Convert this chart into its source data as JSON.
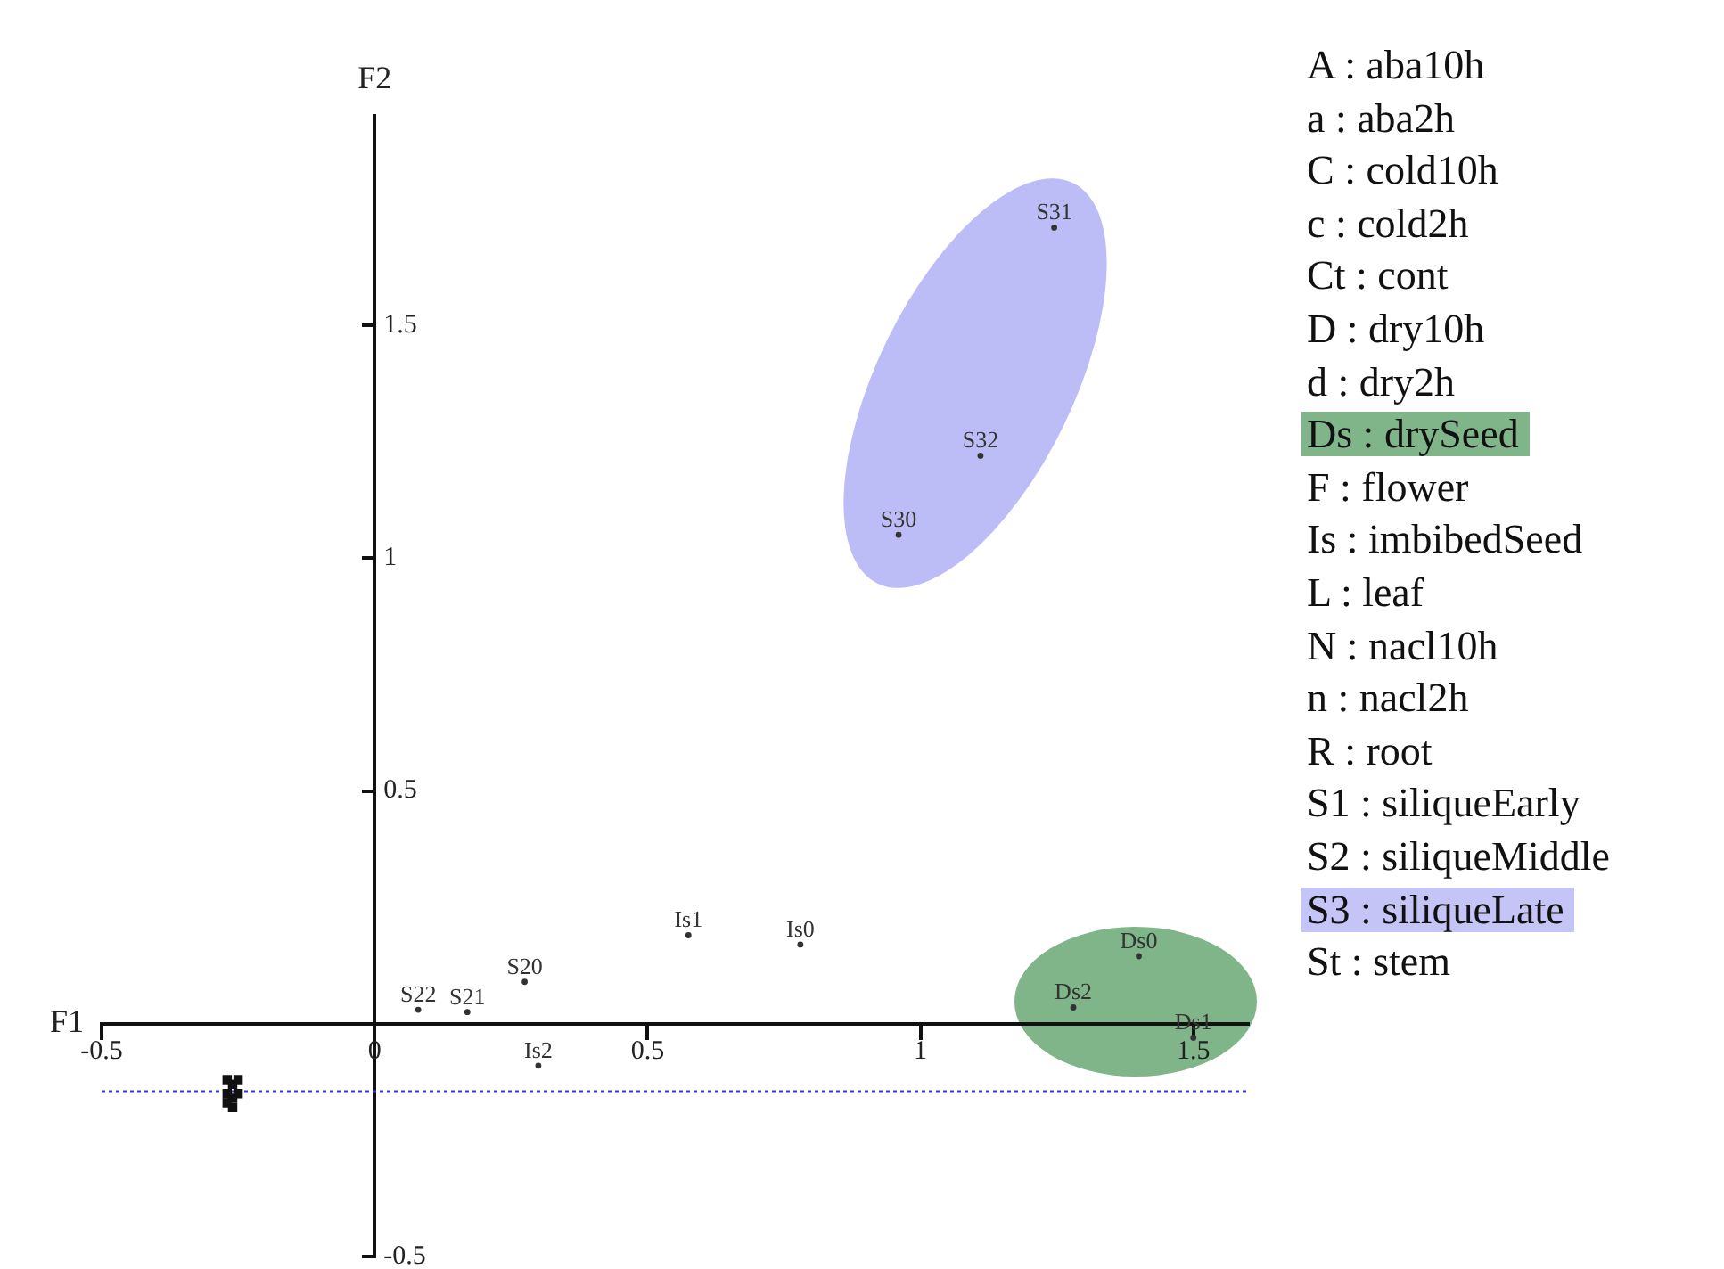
{
  "chart_data": {
    "type": "scatter",
    "xlabel": "F1",
    "ylabel": "F2",
    "xlim": [
      -0.5,
      1.6
    ],
    "ylim": [
      -0.5,
      1.95
    ],
    "xticks": [
      -0.5,
      0,
      0.5,
      1,
      1.5
    ],
    "yticks": [
      -0.5,
      0.5,
      1,
      1.5
    ],
    "grid": false,
    "legend": false,
    "marker": "circle",
    "series": [
      {
        "color": "#333333",
        "x": [
          1.245,
          1.11,
          0.96,
          0.575,
          0.78,
          1.4,
          1.28,
          1.5,
          0.275,
          0.08,
          0.17,
          0.3
        ],
        "values": [
          1.71,
          1.22,
          1.05,
          0.19,
          0.17,
          0.145,
          0.035,
          -0.03,
          0.09,
          0.03,
          0.025,
          -0.09
        ],
        "value_labels": [
          "S31",
          "S32",
          "S30",
          "Is1",
          "Is0",
          "Ds0",
          "Ds2",
          "Ds1",
          "S20",
          "S22",
          "S21",
          "Is2"
        ]
      },
      {
        "color": "#111111",
        "marker": "square",
        "x": [
          -0.27,
          -0.26,
          -0.25,
          -0.27,
          -0.26,
          -0.25,
          -0.27,
          -0.26
        ],
        "values": [
          -0.12,
          -0.13,
          -0.12,
          -0.15,
          -0.16,
          -0.15,
          -0.17,
          -0.18
        ]
      }
    ],
    "ref_lines": [
      {
        "axis": "y",
        "value": -0.145,
        "color": "#3333ff",
        "line_style": "dotted"
      }
    ],
    "annotations": [
      "A : aba10h",
      "a : aba2h",
      "C : cold10h",
      "c : cold2h",
      "Ct : cont",
      "D : dry10h",
      "d : dry2h",
      "Ds : drySeed",
      "F : flower",
      "Is : imbibedSeed",
      "L : leaf",
      "N : nacl10h",
      "n : nacl2h",
      "R : root",
      "S1 : siliqueEarly",
      "S2 : siliqueMiddle",
      "S3 : siliqueLate",
      "St : stem"
    ]
  }
}
